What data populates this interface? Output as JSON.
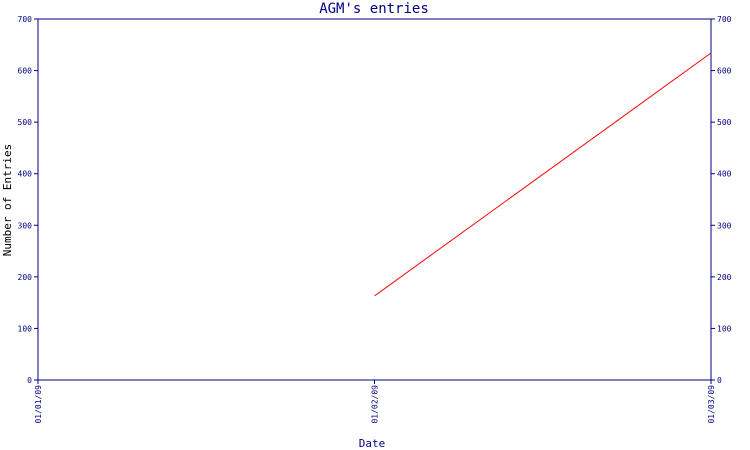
{
  "chart_data": {
    "type": "line",
    "title": "AGM's entries",
    "xlabel": "Date",
    "ylabel": "Number of Entries",
    "x": [
      "01/01/09",
      "01/02/09",
      "01/03/09"
    ],
    "series": [
      {
        "values": [
          null,
          163,
          634
        ],
        "color": "#ff0000"
      }
    ],
    "ylim": [
      0,
      700
    ],
    "yticks": [
      0,
      100,
      200,
      300,
      400,
      500,
      600,
      700
    ],
    "right_axis": true,
    "grid": false,
    "colors": {
      "axis": "#000080",
      "background": "#ffffff"
    }
  }
}
